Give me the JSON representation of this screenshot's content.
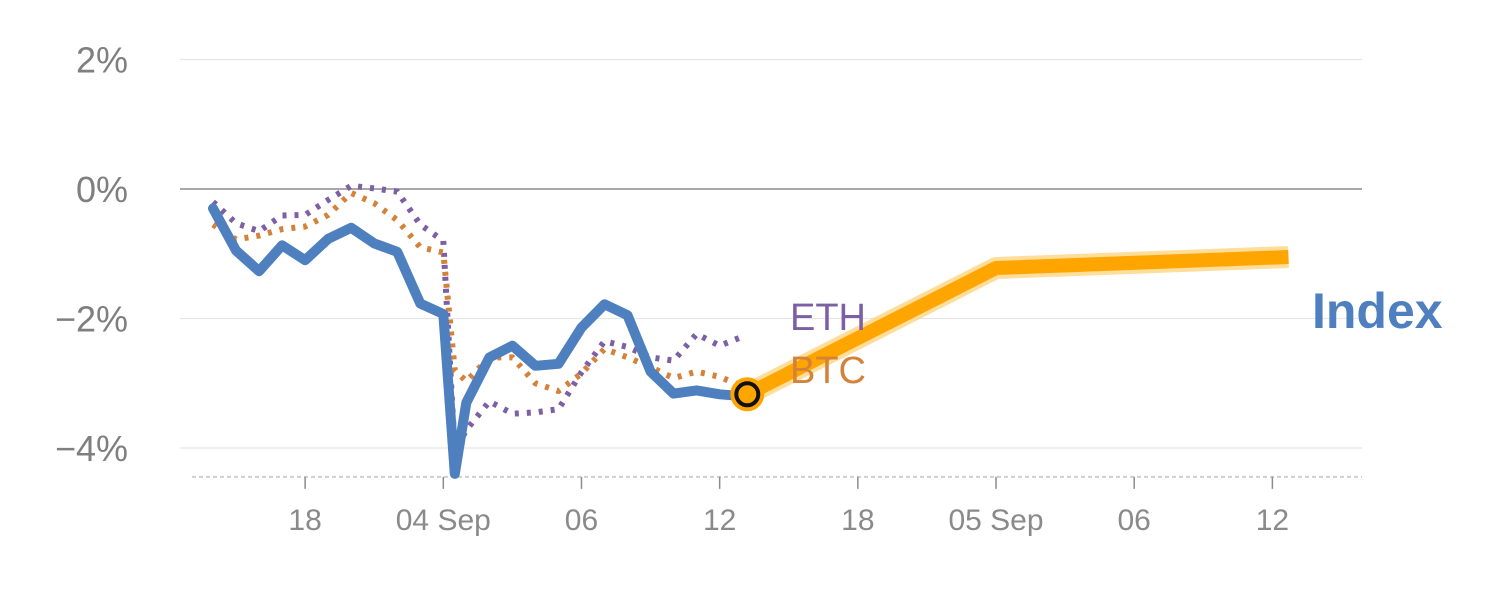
{
  "chart_data": {
    "type": "line",
    "title": "",
    "xlabel": "",
    "ylabel": "",
    "y_unit": "%",
    "ylim": [
      -4.6,
      2.0
    ],
    "yticks": [
      2,
      0,
      -2,
      -4
    ],
    "ytick_labels": [
      "2%",
      "0%",
      "−2%",
      "−4%"
    ],
    "zero_line": 0,
    "grid": "horizontal",
    "x_index_range": [
      0,
      49
    ],
    "xticks": [
      {
        "pos": 4,
        "label": "18"
      },
      {
        "pos": 10,
        "label": "04 Sep"
      },
      {
        "pos": 16,
        "label": "06"
      },
      {
        "pos": 22,
        "label": "12"
      },
      {
        "pos": 28,
        "label": "18"
      },
      {
        "pos": 34,
        "label": "05 Sep"
      },
      {
        "pos": 40,
        "label": "06"
      },
      {
        "pos": 46,
        "label": "12"
      }
    ],
    "series": [
      {
        "name": "Index",
        "role": "actual",
        "color": "#4e7fbe",
        "style": "solid",
        "x": [
          0,
          1,
          2,
          3,
          4,
          5,
          6,
          7,
          8,
          9,
          10,
          10.5,
          11,
          12,
          13,
          14,
          15,
          16,
          17,
          18,
          19,
          20,
          21,
          22,
          23
        ],
        "values": [
          -0.3,
          -0.95,
          -1.27,
          -0.87,
          -1.1,
          -0.77,
          -0.6,
          -0.84,
          -0.97,
          -1.77,
          -1.93,
          -4.4,
          -3.3,
          -2.6,
          -2.42,
          -2.73,
          -2.7,
          -2.14,
          -1.78,
          -1.95,
          -2.82,
          -3.16,
          -3.11,
          -3.17,
          -3.2
        ]
      },
      {
        "name": "ETH",
        "role": "actual",
        "color": "#7c5fa4",
        "style": "dotted",
        "x": [
          0,
          1,
          2,
          3,
          4,
          5,
          6,
          7,
          8,
          9,
          10,
          10.5,
          11,
          12,
          13,
          14,
          15,
          16,
          17,
          18,
          19,
          20,
          21,
          22,
          23
        ],
        "values": [
          -0.2,
          -0.53,
          -0.65,
          -0.41,
          -0.4,
          -0.17,
          0.05,
          0.01,
          -0.04,
          -0.55,
          -0.8,
          -4.05,
          -3.72,
          -3.28,
          -3.47,
          -3.45,
          -3.4,
          -2.83,
          -2.35,
          -2.44,
          -2.6,
          -2.65,
          -2.24,
          -2.42,
          -2.28
        ]
      },
      {
        "name": "BTC",
        "role": "actual",
        "color": "#d4823a",
        "style": "dotted",
        "x": [
          0,
          1,
          2,
          3,
          4,
          5,
          6,
          7,
          8,
          9,
          10,
          10.5,
          11,
          12,
          13,
          14,
          15,
          16,
          17,
          18,
          19,
          20,
          21,
          22,
          23
        ],
        "values": [
          -0.55,
          -0.78,
          -0.72,
          -0.62,
          -0.58,
          -0.4,
          -0.06,
          -0.22,
          -0.48,
          -0.9,
          -0.98,
          -2.8,
          -2.97,
          -2.6,
          -2.6,
          -3.0,
          -3.12,
          -2.85,
          -2.47,
          -2.6,
          -2.75,
          -2.92,
          -2.82,
          -2.9,
          -3.05
        ]
      },
      {
        "name": "",
        "role": "forecast",
        "color": "#ffa500",
        "style": "solid",
        "x": [
          23.2,
          34,
          46.7
        ],
        "values": [
          -3.17,
          -1.22,
          -1.05
        ]
      }
    ],
    "series_labels": [
      {
        "text": "ETH",
        "color": "#7c5fa4"
      },
      {
        "text": "BTC",
        "color": "#d4823a"
      },
      {
        "text": "Index",
        "color": "#4e7fbe"
      }
    ]
  }
}
